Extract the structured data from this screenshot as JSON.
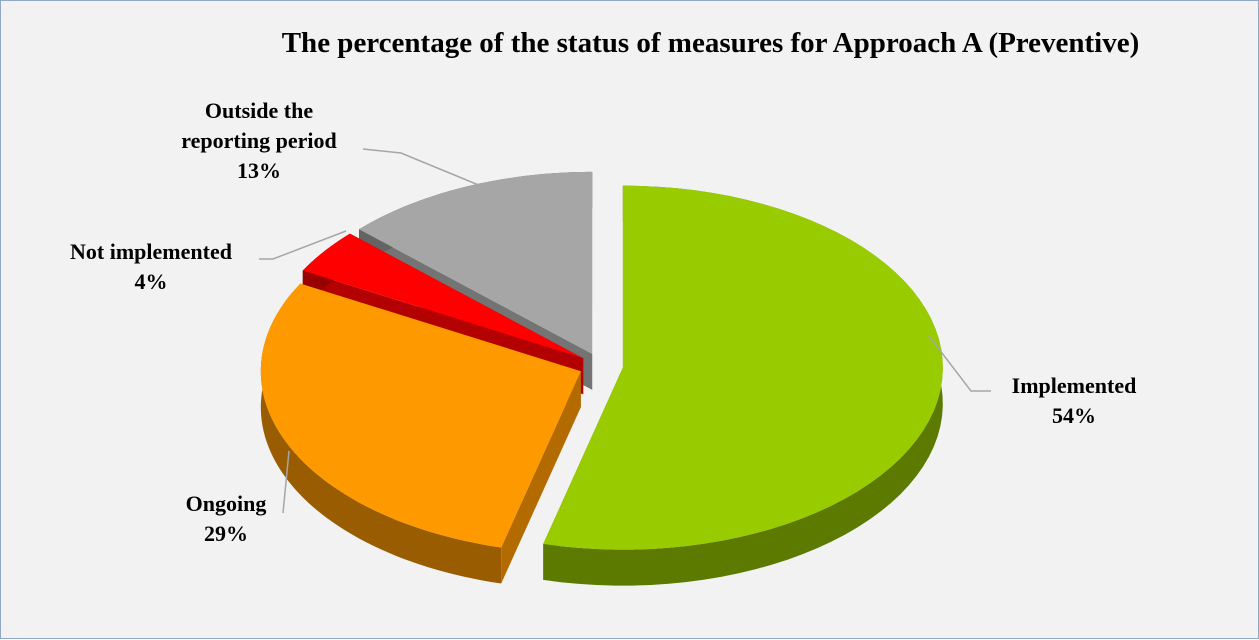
{
  "chart_data": {
    "type": "pie",
    "title": "The percentage of the status of measures for Approach A (Preventive)",
    "categories": [
      "Implemented",
      "Ongoing",
      "Not implemented",
      "Outside the reporting period"
    ],
    "values": [
      54,
      29,
      4,
      13
    ],
    "value_labels": [
      "54%",
      "29%",
      "4%",
      "13%"
    ],
    "colors": [
      "#99cc00",
      "#ff9900",
      "#ff0000",
      "#a6a6a6"
    ]
  }
}
